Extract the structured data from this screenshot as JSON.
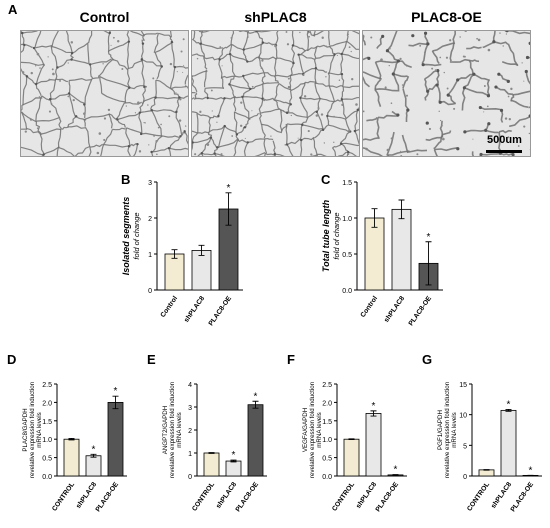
{
  "panel_a": {
    "letter": "A",
    "conditions": [
      "Control",
      "shPLAC8",
      "PLAC8-OE"
    ],
    "scale_bar": "500um"
  },
  "chart_data": [
    {
      "panel": "B",
      "type": "bar",
      "ylabel": "Isolated segments",
      "ylabel_sub": "fold of change",
      "categories": [
        "Control",
        "shPLAC8",
        "PLAC8-OE"
      ],
      "values": [
        1.0,
        1.1,
        2.25
      ],
      "errors": [
        0.12,
        0.14,
        0.45
      ],
      "significant": [
        false,
        false,
        true
      ],
      "yticks": [
        "0",
        "1",
        "2",
        "3"
      ],
      "ylim": [
        0,
        3
      ],
      "colors": [
        "#f3ecd2",
        "#e8e8e8",
        "#555555"
      ]
    },
    {
      "panel": "C",
      "type": "bar",
      "ylabel": "Total tube length",
      "ylabel_sub": "fold of change",
      "categories": [
        "Control",
        "shPLAC8",
        "PLAC8-OE"
      ],
      "values": [
        1.0,
        1.12,
        0.37
      ],
      "errors": [
        0.13,
        0.13,
        0.3
      ],
      "significant": [
        false,
        false,
        true
      ],
      "yticks": [
        "0.0",
        "0.5",
        "1.0",
        "1.5"
      ],
      "ylim": [
        0,
        1.5
      ],
      "colors": [
        "#f3ecd2",
        "#e8e8e8",
        "#555555"
      ]
    },
    {
      "panel": "D",
      "type": "bar",
      "ylabel_lines": [
        "PLAC8/GAPDH",
        "revelative expression fold induction",
        "mRNA levels"
      ],
      "categories": [
        "CONTROL",
        "shPLAC8",
        "PLAC8-OE"
      ],
      "values": [
        1.0,
        0.55,
        2.0
      ],
      "errors": [
        0.02,
        0.04,
        0.17
      ],
      "significant": [
        false,
        true,
        true
      ],
      "yticks": [
        "0.0",
        "0.5",
        "1.0",
        "1.5",
        "2.0",
        "2.5"
      ],
      "ylim": [
        0,
        2.5
      ],
      "colors": [
        "#f3ecd2",
        "#e8e8e8",
        "#555555"
      ]
    },
    {
      "panel": "E",
      "type": "bar",
      "ylabel_lines": [
        "ANGPT2/GAPDH",
        "revelative expression fold induction",
        "mRNA levels"
      ],
      "categories": [
        "CONTROL",
        "shPLAC8",
        "PLAC8-OE"
      ],
      "values": [
        1.0,
        0.65,
        3.1
      ],
      "errors": [
        0.02,
        0.04,
        0.15
      ],
      "significant": [
        false,
        true,
        true
      ],
      "yticks": [
        "0",
        "1",
        "2",
        "3",
        "4"
      ],
      "ylim": [
        0,
        4
      ],
      "colors": [
        "#f3ecd2",
        "#e8e8e8",
        "#555555"
      ]
    },
    {
      "panel": "F",
      "type": "bar",
      "ylabel_lines": [
        "VEGFA/GAPDH",
        "revelative expression fold induction",
        "mRNA levels"
      ],
      "categories": [
        "CONTROL",
        "shPLAC8",
        "PLAC8-OE"
      ],
      "values": [
        1.0,
        1.7,
        0.03
      ],
      "errors": [
        0.01,
        0.07,
        0.01
      ],
      "significant": [
        false,
        true,
        true
      ],
      "yticks": [
        "0.0",
        "0.5",
        "1.0",
        "1.5",
        "2.0",
        "2.5"
      ],
      "ylim": [
        0,
        2.5
      ],
      "colors": [
        "#f3ecd2",
        "#e8e8e8",
        "#555555"
      ]
    },
    {
      "panel": "G",
      "type": "bar",
      "ylabel_lines": [
        "PGF1/GAPDH",
        "revelative expression fold induction",
        "mRNA levels"
      ],
      "categories": [
        "CONTROL",
        "shPLAC8",
        "PLAC8-OE"
      ],
      "values": [
        1.0,
        10.7,
        0.1
      ],
      "errors": [
        0.05,
        0.15,
        0.02
      ],
      "significant": [
        false,
        true,
        true
      ],
      "yticks": [
        "0",
        "5",
        "10",
        "15"
      ],
      "ylim": [
        0,
        15
      ],
      "colors": [
        "#f3ecd2",
        "#e8e8e8",
        "#555555"
      ]
    }
  ]
}
